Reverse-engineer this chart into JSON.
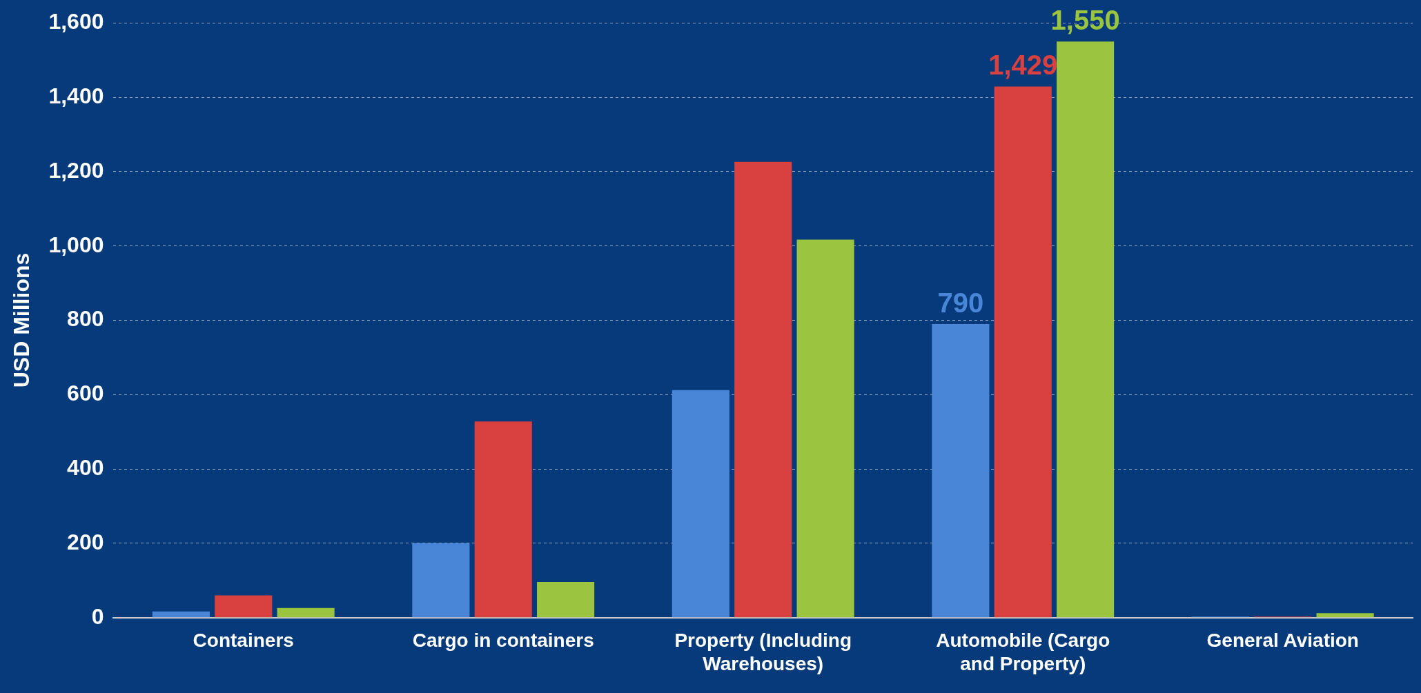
{
  "chart_data": {
    "type": "bar",
    "ylabel": "USD Millions",
    "categories": [
      "Containers",
      "Cargo in containers",
      "Property (Including Warehouses)",
      "Automobile (Cargo and Property)",
      "General Aviation"
    ],
    "series": [
      {
        "color": "#4a86d8",
        "values": [
          17,
          201,
          612,
          790,
          3
        ],
        "value_labels": [
          null,
          null,
          null,
          "790",
          null
        ]
      },
      {
        "color": "#d94040",
        "values": [
          60,
          528,
          1226,
          1429,
          3
        ],
        "value_labels": [
          null,
          null,
          null,
          "1,429",
          null
        ]
      },
      {
        "color": "#9bc440",
        "values": [
          26,
          96,
          1017,
          1550,
          12
        ],
        "value_labels": [
          null,
          null,
          null,
          "1,550",
          null
        ]
      }
    ],
    "ylim": [
      0,
      1600
    ],
    "yticks": [
      {
        "value": 0,
        "label": "0"
      },
      {
        "value": 200,
        "label": "200"
      },
      {
        "value": 400,
        "label": "400"
      },
      {
        "value": 600,
        "label": "600"
      },
      {
        "value": 800,
        "label": "800"
      },
      {
        "value": 1000,
        "label": "1,000"
      },
      {
        "value": 1200,
        "label": "1,200"
      },
      {
        "value": 1400,
        "label": "1,400"
      },
      {
        "value": 1600,
        "label": "1,600"
      }
    ],
    "grid": "y",
    "legend": false
  }
}
